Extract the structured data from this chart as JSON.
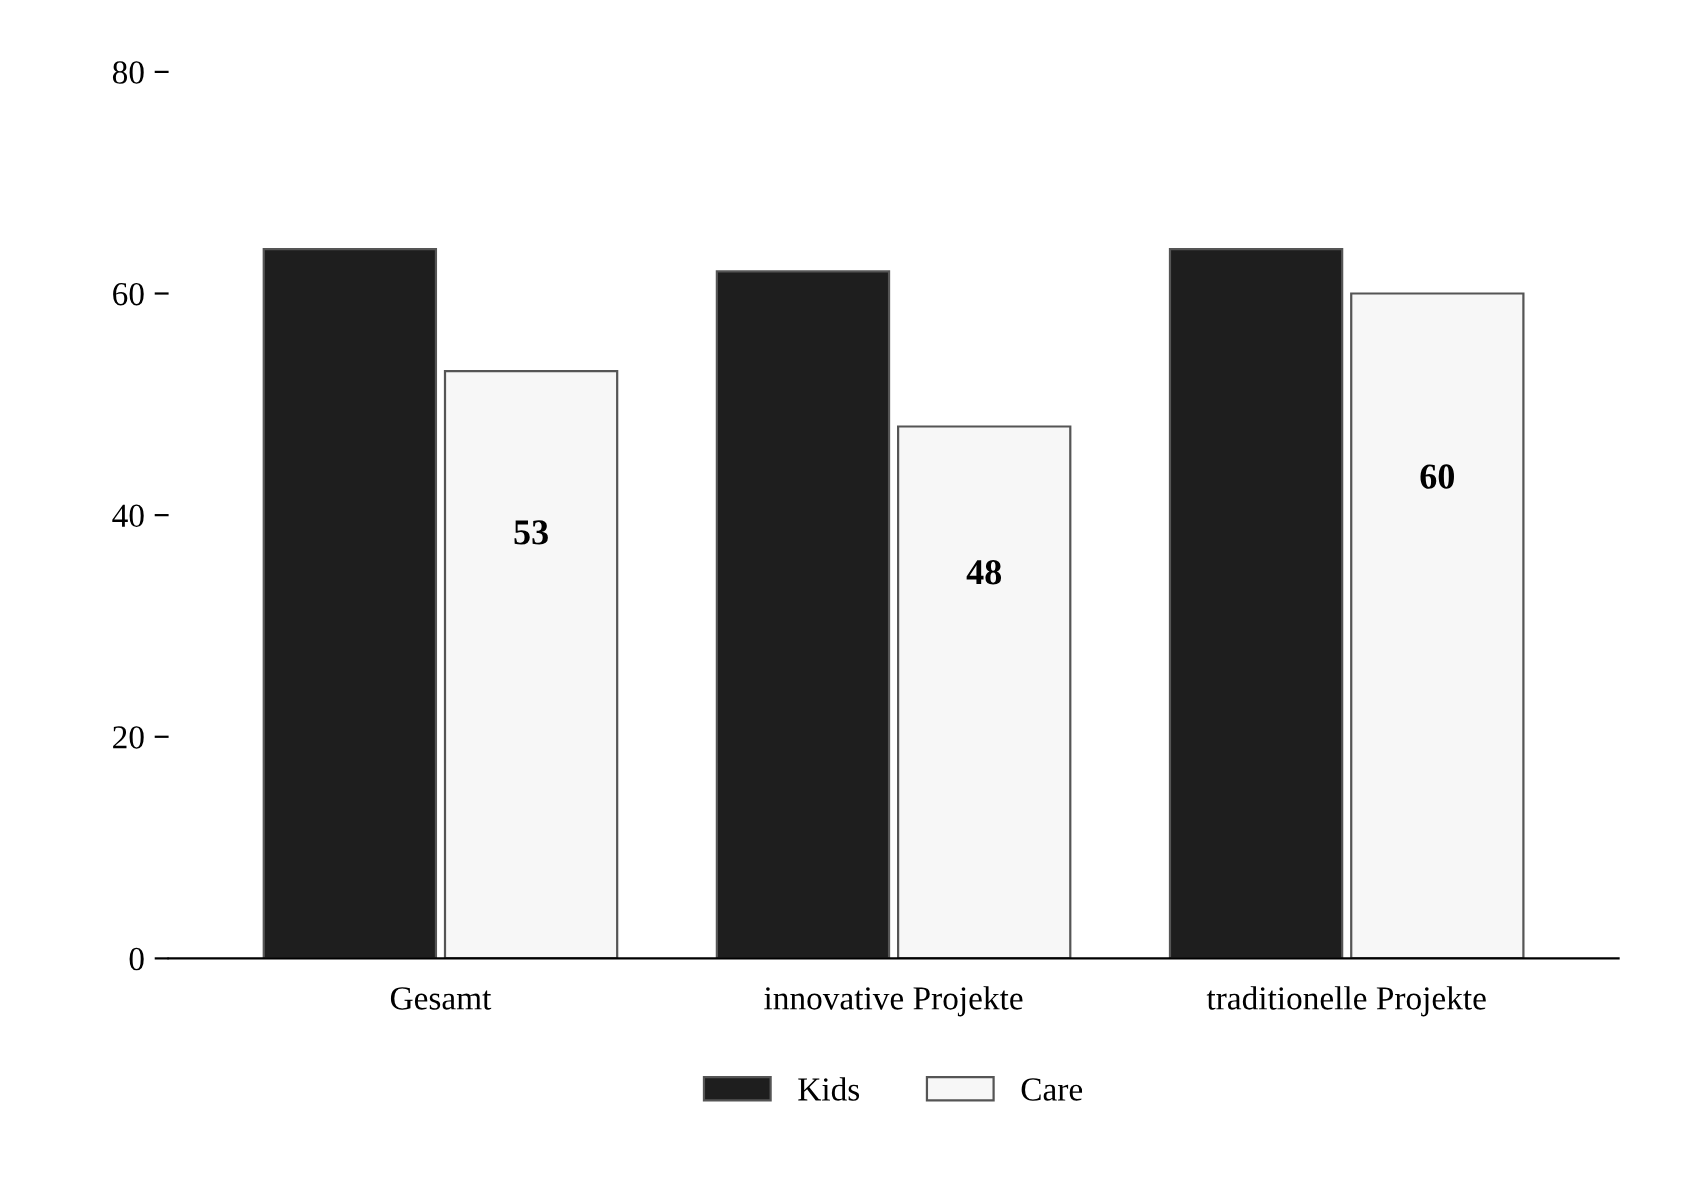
{
  "chart_data": {
    "type": "bar",
    "categories": [
      "Gesamt",
      "innovative Projekte",
      "traditionelle Projekte"
    ],
    "series": [
      {
        "name": "Kids",
        "color": "#1e1e1e",
        "values": [
          64,
          62,
          64
        ]
      },
      {
        "name": "Care",
        "color": "#f7f7f7",
        "values": [
          53,
          48,
          60
        ],
        "value_labels": [
          "53",
          "48",
          "60"
        ]
      }
    ],
    "ylim": [
      0,
      80
    ],
    "yticks": [
      0,
      20,
      40,
      60,
      80
    ],
    "grid": false,
    "legend": "bottom"
  }
}
